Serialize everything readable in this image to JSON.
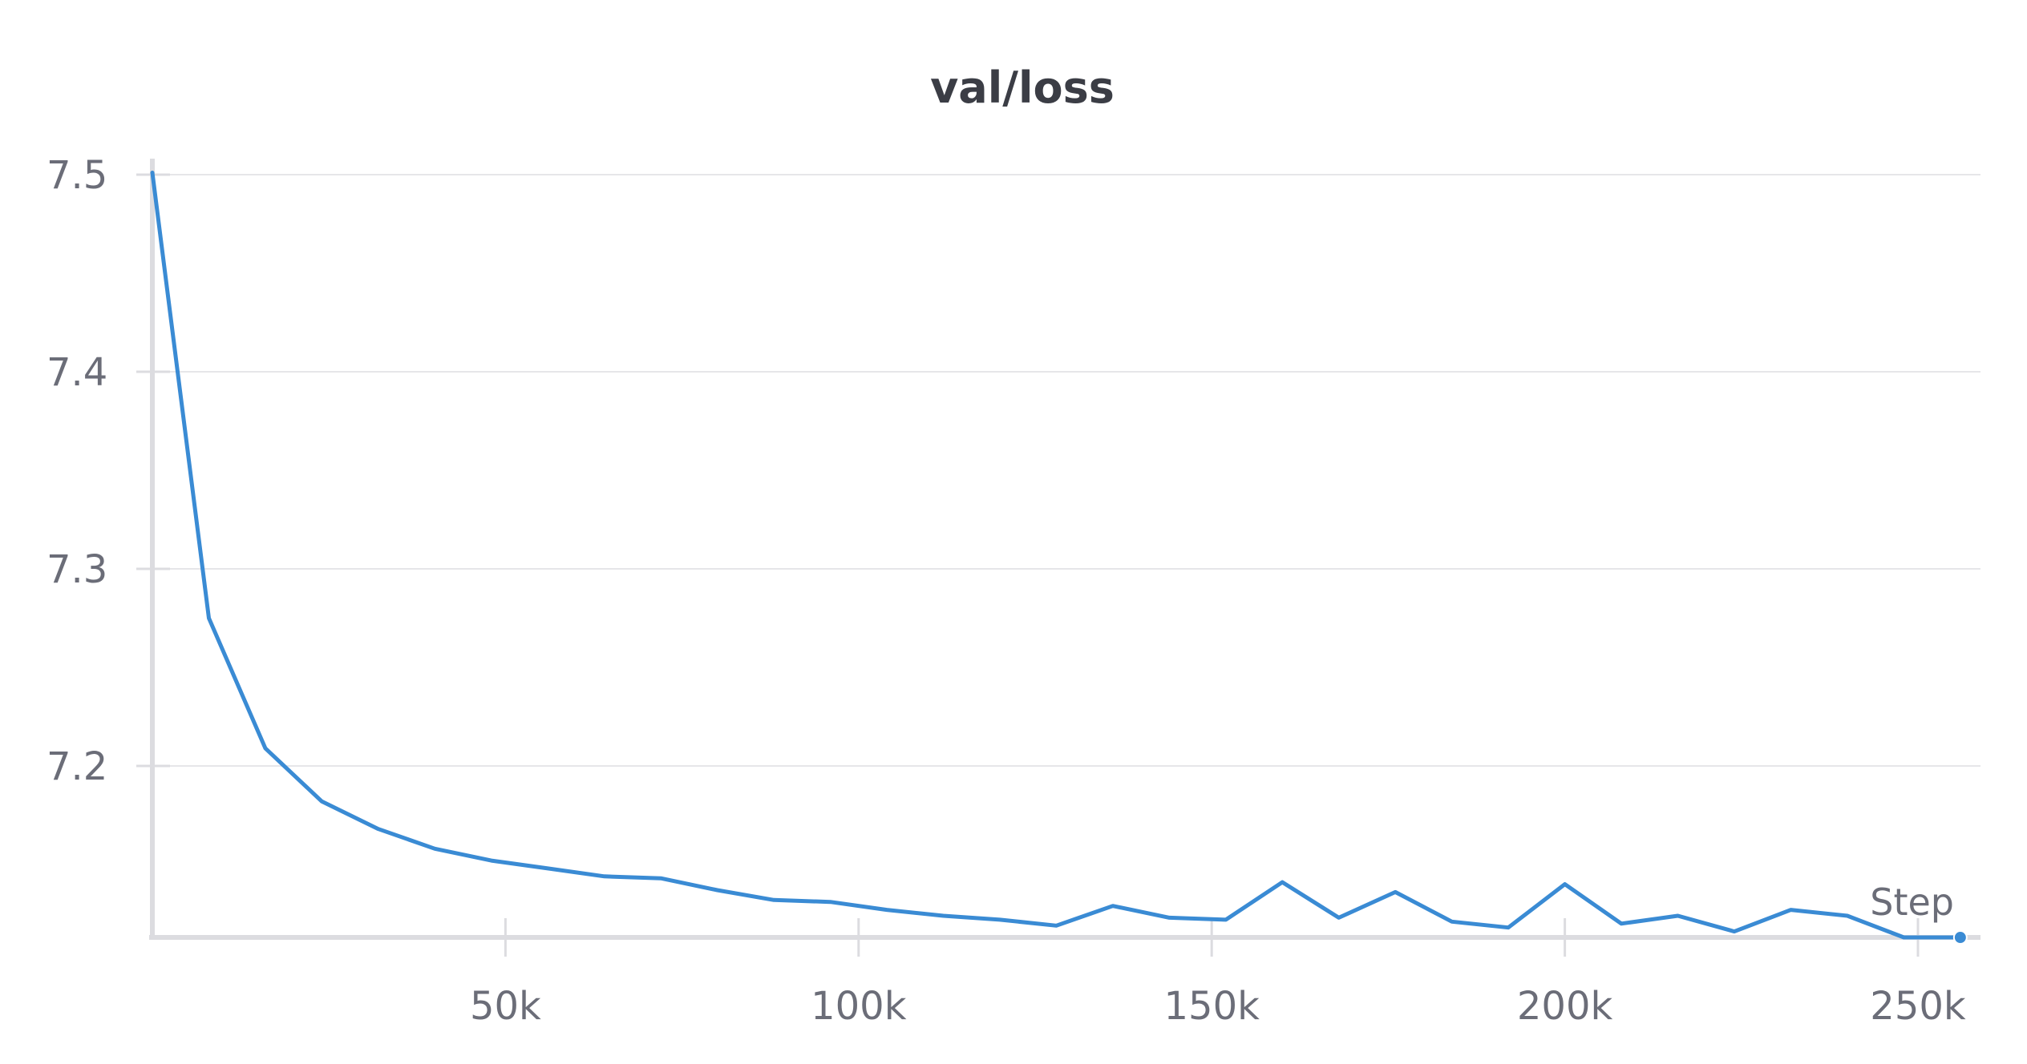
{
  "chart_data": {
    "type": "line",
    "title": "val/loss",
    "xlabel": "Step",
    "ylabel": "",
    "xlim": [
      0,
      260000
    ],
    "ylim": [
      7.113,
      7.505
    ],
    "x_ticks": [
      50000,
      100000,
      150000,
      200000,
      250000
    ],
    "x_tick_labels": [
      "50k",
      "100k",
      "150k",
      "200k",
      "250k"
    ],
    "y_ticks": [
      7.2,
      7.3,
      7.4,
      7.5
    ],
    "y_tick_labels": [
      "7.2",
      "7.3",
      "7.4",
      "7.5"
    ],
    "grid": true,
    "legend": "none",
    "series": [
      {
        "color": "#3a8bd4",
        "x": [
          0,
          8000,
          16000,
          24000,
          32000,
          40000,
          48000,
          56000,
          64000,
          72000,
          80000,
          88000,
          96000,
          104000,
          112000,
          120000,
          128000,
          136000,
          144000,
          152000,
          160000,
          168000,
          176000,
          184000,
          192000,
          200000,
          208000,
          216000,
          224000,
          232000,
          240000,
          248000,
          256000
        ],
        "values": [
          7.501,
          7.275,
          7.209,
          7.182,
          7.168,
          7.158,
          7.152,
          7.148,
          7.144,
          7.143,
          7.137,
          7.132,
          7.131,
          7.127,
          7.124,
          7.122,
          7.119,
          7.129,
          7.123,
          7.122,
          7.141,
          7.123,
          7.136,
          7.121,
          7.118,
          7.14,
          7.12,
          7.124,
          7.116,
          7.127,
          7.124,
          7.113,
          7.113
        ]
      }
    ]
  }
}
